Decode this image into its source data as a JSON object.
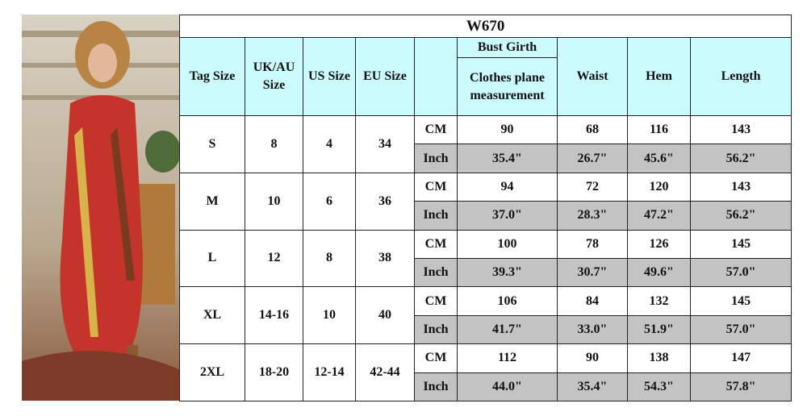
{
  "table": {
    "title": "W670",
    "headers": [
      "Tag Size",
      "UK/AU Size",
      "US Size",
      "EU Size"
    ],
    "bust_header": [
      "Bust Girth",
      "Clothes plane measurement"
    ],
    "measure_headers": [
      "Waist",
      "Hem",
      "Length"
    ],
    "rows": [
      {
        "tag": "S",
        "uk_au": "8",
        "us": "4",
        "eu": "34",
        "cm": {
          "unit": "CM",
          "values": [
            "90",
            "68",
            "116",
            "143"
          ]
        },
        "inch": {
          "unit": "Inch",
          "values": [
            "35.4\"",
            "26.7\"",
            "45.6\"",
            "56.2\""
          ]
        }
      },
      {
        "tag": "M",
        "uk_au": "10",
        "us": "6",
        "eu": "36",
        "cm": {
          "unit": "CM",
          "values": [
            "94",
            "72",
            "120",
            "143"
          ]
        },
        "inch": {
          "unit": "Inch",
          "values": [
            "37.0\"",
            "28.3\"",
            "47.2\"",
            "56.2\""
          ]
        }
      },
      {
        "tag": "L",
        "uk_au": "12",
        "us": "8",
        "eu": "38",
        "cm": {
          "unit": "CM",
          "values": [
            "100",
            "78",
            "126",
            "145"
          ]
        },
        "inch": {
          "unit": "Inch",
          "values": [
            "39.3\"",
            "30.7\"",
            "49.6\"",
            "57.0\""
          ]
        }
      },
      {
        "tag": "XL",
        "uk_au": "14-16",
        "us": "10",
        "eu": "40",
        "cm": {
          "unit": "CM",
          "values": [
            "106",
            "84",
            "132",
            "145"
          ]
        },
        "inch": {
          "unit": "Inch",
          "values": [
            "41.7\"",
            "33.0\"",
            "51.9\"",
            "57.0\""
          ]
        }
      },
      {
        "tag": "2XL",
        "uk_au": "18-20",
        "us": "12-14",
        "eu": "42-44",
        "cm": {
          "unit": "CM",
          "values": [
            "112",
            "90",
            "138",
            "147"
          ]
        },
        "inch": {
          "unit": "Inch",
          "values": [
            "44.0\"",
            "35.4\"",
            "54.3\"",
            "57.8\""
          ]
        }
      }
    ]
  }
}
